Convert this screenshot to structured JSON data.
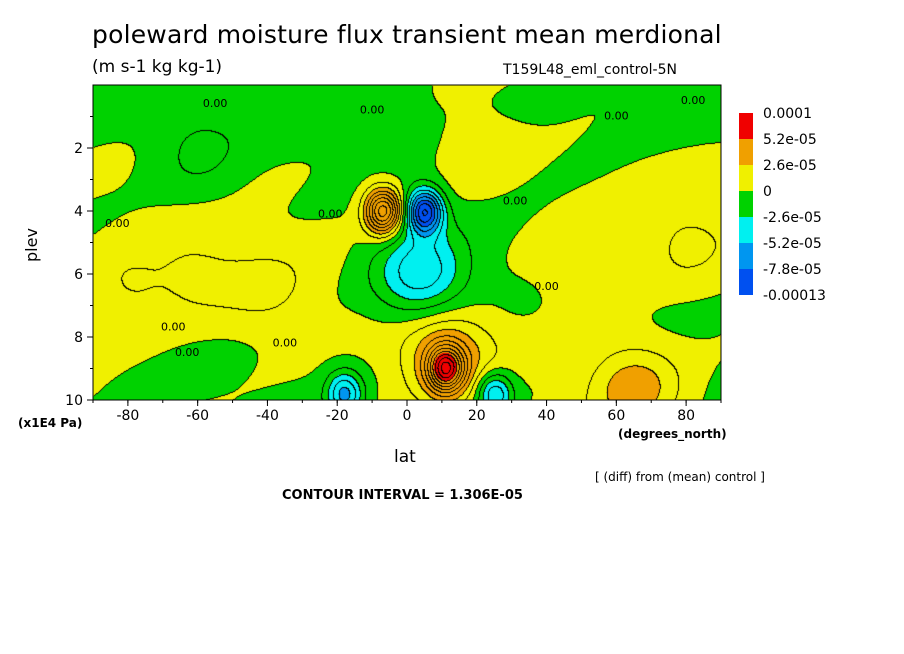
{
  "chart_data": {
    "type": "heatmap",
    "title": "poleward moisture flux transient mean merdional",
    "units": "(m s-1 kg kg-1)",
    "run_name": "T159L48_eml_control-5N",
    "xlabel": "lat",
    "xunits": "(degrees_north)",
    "ylabel": "plev",
    "yunits": "(x1E4 Pa)",
    "xlim": [
      -90,
      90
    ],
    "ylim": [
      10,
      0
    ],
    "x_ticks": [
      "-80",
      "-60",
      "-40",
      "-20",
      "0",
      "20",
      "40",
      "60",
      "80"
    ],
    "y_ticks": [
      "2",
      "4",
      "6",
      "8",
      "10"
    ],
    "legend": {
      "placement": "right",
      "levels": [
        "0.0001",
        "5.2e-05",
        "2.6e-05",
        "0",
        "-2.6e-05",
        "-5.2e-05",
        "-7.8e-05",
        "-0.00013"
      ],
      "colors": [
        "#f00000",
        "#f0a000",
        "#f0f000",
        "#00d200",
        "#00f0f0",
        "#0096f0",
        "#0050f0"
      ]
    },
    "contour_labels": [
      "0.00",
      "0.00",
      "0.00",
      "0.00",
      "0.00",
      "0.00",
      "0.00",
      "0.00",
      "0.00",
      "0.00",
      "0.00"
    ],
    "features": [
      {
        "lat": -7,
        "plev": 4.0,
        "value": 0.0001
      },
      {
        "lat": 5,
        "plev": 4.0,
        "value": -0.0001
      },
      {
        "lat": 4,
        "plev": 6.0,
        "value": -5e-05
      },
      {
        "lat": 11,
        "plev": 9.0,
        "value": 0.0001
      },
      {
        "lat": 11,
        "plev": 8.5,
        "value": 4e-05
      },
      {
        "lat": -18,
        "plev": 9.8,
        "value": -5.5e-05
      },
      {
        "lat": 25,
        "plev": 9.8,
        "value": -5.5e-05
      },
      {
        "lat": 65,
        "plev": 9.6,
        "value": 3.5e-05
      },
      {
        "lat": -80,
        "plev": 6.5,
        "value": 1.5e-05
      },
      {
        "lat": -60,
        "plev": 6.0,
        "value": 1.5e-05
      },
      {
        "lat": -40,
        "plev": 6.5,
        "value": 1.5e-05
      },
      {
        "lat": 50,
        "plev": 5.5,
        "value": 1.5e-05
      },
      {
        "lat": 80,
        "plev": 5.0,
        "value": 1.5e-05
      },
      {
        "lat": -60,
        "plev": 2.2,
        "value": -1.5e-05
      },
      {
        "lat": 20,
        "plev": 2.0,
        "value": 1.2e-05
      }
    ],
    "grid": false
  },
  "diff_note": "[ (diff) from (mean) control ]",
  "contour_interval": "CONTOUR INTERVAL = 1.306E-05"
}
